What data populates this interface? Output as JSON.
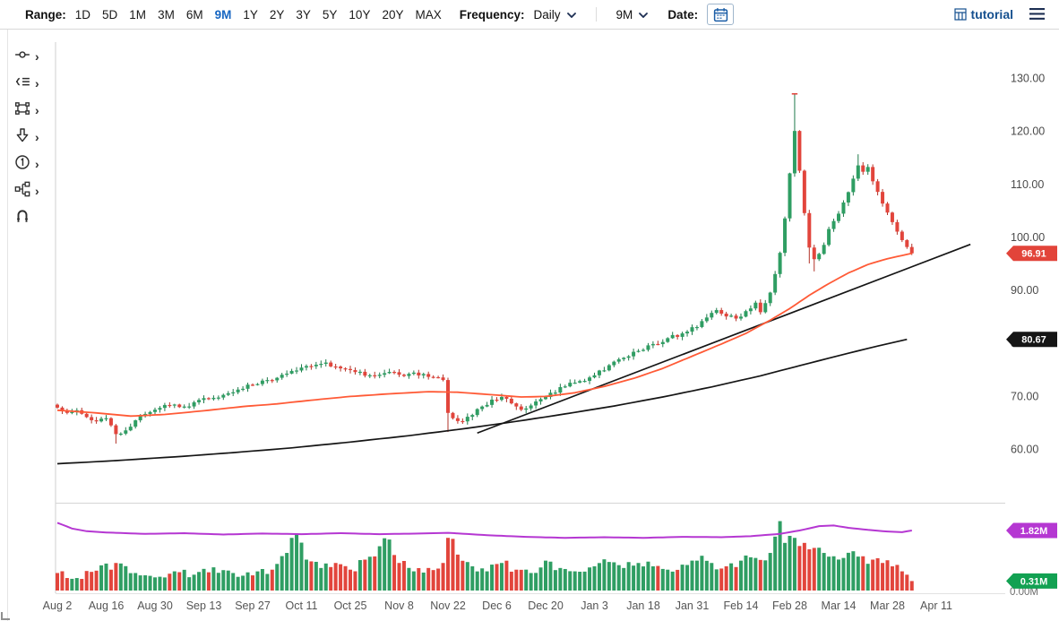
{
  "toolbar": {
    "range_label": "Range:",
    "ranges": [
      "1D",
      "5D",
      "1M",
      "3M",
      "6M",
      "9M",
      "1Y",
      "2Y",
      "3Y",
      "5Y",
      "10Y",
      "20Y",
      "MAX"
    ],
    "active_range": "9M",
    "frequency_label": "Frequency:",
    "frequency_value": "Daily",
    "period_value": "9M",
    "date_label": "Date:",
    "tutorial_label": "tutorial"
  },
  "tools": [
    {
      "name": "measure-tool",
      "has_submenu": true
    },
    {
      "name": "drawings-tool",
      "has_submenu": true
    },
    {
      "name": "shapes-tool",
      "has_submenu": true
    },
    {
      "name": "arrow-annotation-tool",
      "has_submenu": true
    },
    {
      "name": "number-annotation-tool",
      "has_submenu": true
    },
    {
      "name": "flow-tool",
      "has_submenu": true
    },
    {
      "name": "magnet-tool",
      "has_submenu": false
    }
  ],
  "chart_data": {
    "type": "candlestick",
    "frequency": "Daily",
    "range": "9M",
    "x_tick_labels": [
      "Aug 2",
      "Aug 16",
      "Aug 30",
      "Sep 13",
      "Sep 27",
      "Oct 11",
      "Oct 25",
      "Nov 8",
      "Nov 22",
      "Dec 6",
      "Dec 20",
      "Jan 3",
      "Jan 18",
      "Jan 31",
      "Feb 14",
      "Feb 28",
      "Mar 14",
      "Mar 28",
      "Apr 11"
    ],
    "price_axis_ticks": [
      130,
      120,
      110,
      100,
      90,
      80,
      70,
      60
    ],
    "volume_axis_zero_label": "0.00M",
    "badges": [
      {
        "name": "price-current",
        "label": "96.91",
        "color": "#e2443a",
        "panel": "price",
        "value": 96.91
      },
      {
        "name": "slow-line-current",
        "label": "80.67",
        "color": "#151515",
        "panel": "price",
        "value": 80.67
      },
      {
        "name": "volume-ma-current",
        "label": "1.82M",
        "color": "#b537d2",
        "panel": "volume",
        "value": 1.82
      },
      {
        "name": "volume-current",
        "label": "0.31M",
        "color": "#12a152",
        "panel": "volume",
        "value": 0.31
      }
    ],
    "colors": {
      "up": "#2f9e63",
      "up_edge": "#1e7a4a",
      "down": "#e2453c",
      "down_edge": "#b23328",
      "ma_fast": "#ff5a36",
      "ma_slow": "#151515",
      "trendline": "#151515",
      "volume_ma": "#b537d2"
    },
    "series": [
      {
        "name": "price",
        "type": "candlestick",
        "close_anchors": [
          [
            0,
            67.8
          ],
          [
            2,
            66.8
          ],
          [
            4,
            67.3
          ],
          [
            6,
            66.0
          ],
          [
            8,
            65.2
          ],
          [
            10,
            65.8
          ],
          [
            12,
            62.8
          ],
          [
            14,
            63.5
          ],
          [
            16,
            65.4
          ],
          [
            18,
            66.6
          ],
          [
            20,
            67.4
          ],
          [
            23,
            68.2
          ],
          [
            26,
            68.0
          ],
          [
            28,
            68.8
          ],
          [
            31,
            69.4
          ],
          [
            34,
            70.2
          ],
          [
            37,
            71.2
          ],
          [
            40,
            72.1
          ],
          [
            43,
            73.0
          ],
          [
            46,
            74.0
          ],
          [
            49,
            74.8
          ],
          [
            52,
            75.6
          ],
          [
            55,
            76.3
          ],
          [
            58,
            75.2
          ],
          [
            61,
            74.5
          ],
          [
            64,
            73.9
          ],
          [
            67,
            74.3
          ],
          [
            70,
            74.0
          ],
          [
            73,
            74.4
          ],
          [
            76,
            73.6
          ],
          [
            79,
            73.0
          ],
          [
            80,
            66.8
          ],
          [
            81,
            65.8
          ],
          [
            83,
            65.2
          ],
          [
            85,
            66.4
          ],
          [
            87,
            68.0
          ],
          [
            89,
            69.3
          ],
          [
            91,
            69.8
          ],
          [
            93,
            68.6
          ],
          [
            95,
            67.4
          ],
          [
            97,
            68.2
          ],
          [
            99,
            69.4
          ],
          [
            101,
            70.6
          ],
          [
            104,
            71.8
          ],
          [
            107,
            72.8
          ],
          [
            110,
            73.9
          ],
          [
            113,
            75.8
          ],
          [
            116,
            77.2
          ],
          [
            119,
            78.5
          ],
          [
            122,
            79.8
          ],
          [
            125,
            80.9
          ],
          [
            128,
            81.8
          ],
          [
            131,
            83.0
          ],
          [
            133,
            84.8
          ],
          [
            135,
            86.2
          ],
          [
            137,
            85.0
          ],
          [
            139,
            84.6
          ],
          [
            141,
            86.0
          ],
          [
            143,
            87.6
          ],
          [
            144,
            85.8
          ],
          [
            146,
            89.5
          ],
          [
            147,
            93.0
          ],
          [
            148,
            97.0
          ],
          [
            149,
            103.5
          ],
          [
            150,
            112.0
          ],
          [
            151,
            120.0
          ],
          [
            152,
            112.5
          ],
          [
            153,
            104.5
          ],
          [
            154,
            98.0
          ],
          [
            155,
            95.8
          ],
          [
            156,
            96.8
          ],
          [
            157,
            98.5
          ],
          [
            158,
            101.5
          ],
          [
            159,
            103.0
          ],
          [
            161,
            106.5
          ],
          [
            163,
            111.0
          ],
          [
            164,
            113.5
          ],
          [
            165,
            112.3
          ],
          [
            166,
            113.2
          ],
          [
            167,
            110.5
          ],
          [
            168,
            108.5
          ],
          [
            169,
            106.3
          ],
          [
            170,
            104.6
          ],
          [
            171,
            102.8
          ],
          [
            172,
            101.0
          ],
          [
            173,
            99.4
          ],
          [
            174,
            98.1
          ],
          [
            175,
            96.91
          ]
        ],
        "wick_overrides": {
          "12": {
            "low": 61.0
          },
          "80": {
            "low": 63.2
          },
          "151": {
            "high": 127.0,
            "mark": true
          },
          "154": {
            "low": 95.0
          },
          "155": {
            "low": 93.5
          },
          "164": {
            "high": 115.6
          }
        }
      },
      {
        "name": "ma-fast",
        "type": "line",
        "last_value": 96.91,
        "anchors": [
          [
            0,
            67.3
          ],
          [
            8,
            66.8
          ],
          [
            15,
            66.2
          ],
          [
            22,
            66.5
          ],
          [
            30,
            67.2
          ],
          [
            38,
            68.0
          ],
          [
            45,
            68.5
          ],
          [
            52,
            69.2
          ],
          [
            60,
            69.9
          ],
          [
            68,
            70.4
          ],
          [
            76,
            70.8
          ],
          [
            82,
            70.7
          ],
          [
            88,
            70.3
          ],
          [
            95,
            69.8
          ],
          [
            100,
            69.9
          ],
          [
            106,
            70.6
          ],
          [
            112,
            71.8
          ],
          [
            118,
            73.3
          ],
          [
            124,
            75.2
          ],
          [
            130,
            77.5
          ],
          [
            136,
            79.8
          ],
          [
            141,
            81.8
          ],
          [
            146,
            84.3
          ],
          [
            150,
            86.5
          ],
          [
            154,
            89.0
          ],
          [
            158,
            91.2
          ],
          [
            162,
            93.2
          ],
          [
            166,
            94.8
          ],
          [
            170,
            95.9
          ],
          [
            173,
            96.5
          ],
          [
            175,
            96.91
          ]
        ]
      },
      {
        "name": "ma-slow",
        "type": "line",
        "last_value": 80.67,
        "anchors": [
          [
            0,
            57.2
          ],
          [
            12,
            57.8
          ],
          [
            24,
            58.5
          ],
          [
            36,
            59.3
          ],
          [
            48,
            60.2
          ],
          [
            60,
            61.3
          ],
          [
            72,
            62.5
          ],
          [
            84,
            63.9
          ],
          [
            94,
            65.2
          ],
          [
            104,
            66.6
          ],
          [
            114,
            68.1
          ],
          [
            124,
            69.8
          ],
          [
            134,
            71.7
          ],
          [
            144,
            73.8
          ],
          [
            152,
            75.7
          ],
          [
            160,
            77.6
          ],
          [
            167,
            79.2
          ],
          [
            174,
            80.67
          ]
        ]
      },
      {
        "name": "trendline",
        "type": "line",
        "points": [
          [
            86,
            63.0
          ],
          [
            187,
            98.6
          ]
        ]
      },
      {
        "name": "volume",
        "type": "bar",
        "last_value": 0.31,
        "anchors": [
          [
            0,
            0.55
          ],
          [
            4,
            0.4
          ],
          [
            8,
            0.62
          ],
          [
            12,
            0.85
          ],
          [
            16,
            0.55
          ],
          [
            20,
            0.42
          ],
          [
            24,
            0.6
          ],
          [
            28,
            0.5
          ],
          [
            32,
            0.72
          ],
          [
            36,
            0.55
          ],
          [
            40,
            0.48
          ],
          [
            44,
            0.65
          ],
          [
            47,
            1.15
          ],
          [
            49,
            1.7
          ],
          [
            51,
            0.95
          ],
          [
            54,
            0.7
          ],
          [
            57,
            0.85
          ],
          [
            60,
            0.65
          ],
          [
            63,
            0.95
          ],
          [
            66,
            1.35
          ],
          [
            68,
            1.55
          ],
          [
            70,
            0.85
          ],
          [
            73,
            0.6
          ],
          [
            76,
            0.7
          ],
          [
            79,
            0.85
          ],
          [
            80,
            1.6
          ],
          [
            82,
            1.1
          ],
          [
            85,
            0.75
          ],
          [
            88,
            0.6
          ],
          [
            91,
            0.85
          ],
          [
            94,
            0.65
          ],
          [
            97,
            0.55
          ],
          [
            100,
            0.92
          ],
          [
            103,
            0.7
          ],
          [
            106,
            0.6
          ],
          [
            110,
            0.75
          ],
          [
            113,
            0.88
          ],
          [
            116,
            0.7
          ],
          [
            119,
            0.85
          ],
          [
            122,
            0.75
          ],
          [
            125,
            0.65
          ],
          [
            128,
            0.8
          ],
          [
            131,
            0.92
          ],
          [
            134,
            0.85
          ],
          [
            137,
            0.75
          ],
          [
            140,
            0.92
          ],
          [
            143,
            1.0
          ],
          [
            146,
            1.15
          ],
          [
            148,
            2.1
          ],
          [
            149,
            1.45
          ],
          [
            151,
            1.6
          ],
          [
            153,
            1.45
          ],
          [
            155,
            1.3
          ],
          [
            157,
            1.15
          ],
          [
            159,
            1.05
          ],
          [
            161,
            1.0
          ],
          [
            163,
            1.2
          ],
          [
            165,
            1.05
          ],
          [
            167,
            0.95
          ],
          [
            169,
            0.85
          ],
          [
            171,
            0.75
          ],
          [
            173,
            0.6
          ],
          [
            174,
            0.5
          ],
          [
            175,
            0.31
          ]
        ]
      },
      {
        "name": "volume-ma",
        "type": "line",
        "last_value": 1.82,
        "anchors": [
          [
            0,
            2.05
          ],
          [
            3,
            1.88
          ],
          [
            6,
            1.8
          ],
          [
            10,
            1.76
          ],
          [
            18,
            1.72
          ],
          [
            26,
            1.74
          ],
          [
            34,
            1.7
          ],
          [
            42,
            1.73
          ],
          [
            50,
            1.71
          ],
          [
            58,
            1.74
          ],
          [
            66,
            1.71
          ],
          [
            74,
            1.73
          ],
          [
            80,
            1.75
          ],
          [
            88,
            1.68
          ],
          [
            96,
            1.63
          ],
          [
            104,
            1.6
          ],
          [
            112,
            1.62
          ],
          [
            120,
            1.6
          ],
          [
            128,
            1.63
          ],
          [
            136,
            1.62
          ],
          [
            142,
            1.65
          ],
          [
            148,
            1.72
          ],
          [
            152,
            1.82
          ],
          [
            156,
            1.95
          ],
          [
            159,
            1.97
          ],
          [
            162,
            1.9
          ],
          [
            166,
            1.84
          ],
          [
            170,
            1.79
          ],
          [
            173,
            1.77
          ],
          [
            175,
            1.82
          ]
        ]
      }
    ]
  }
}
